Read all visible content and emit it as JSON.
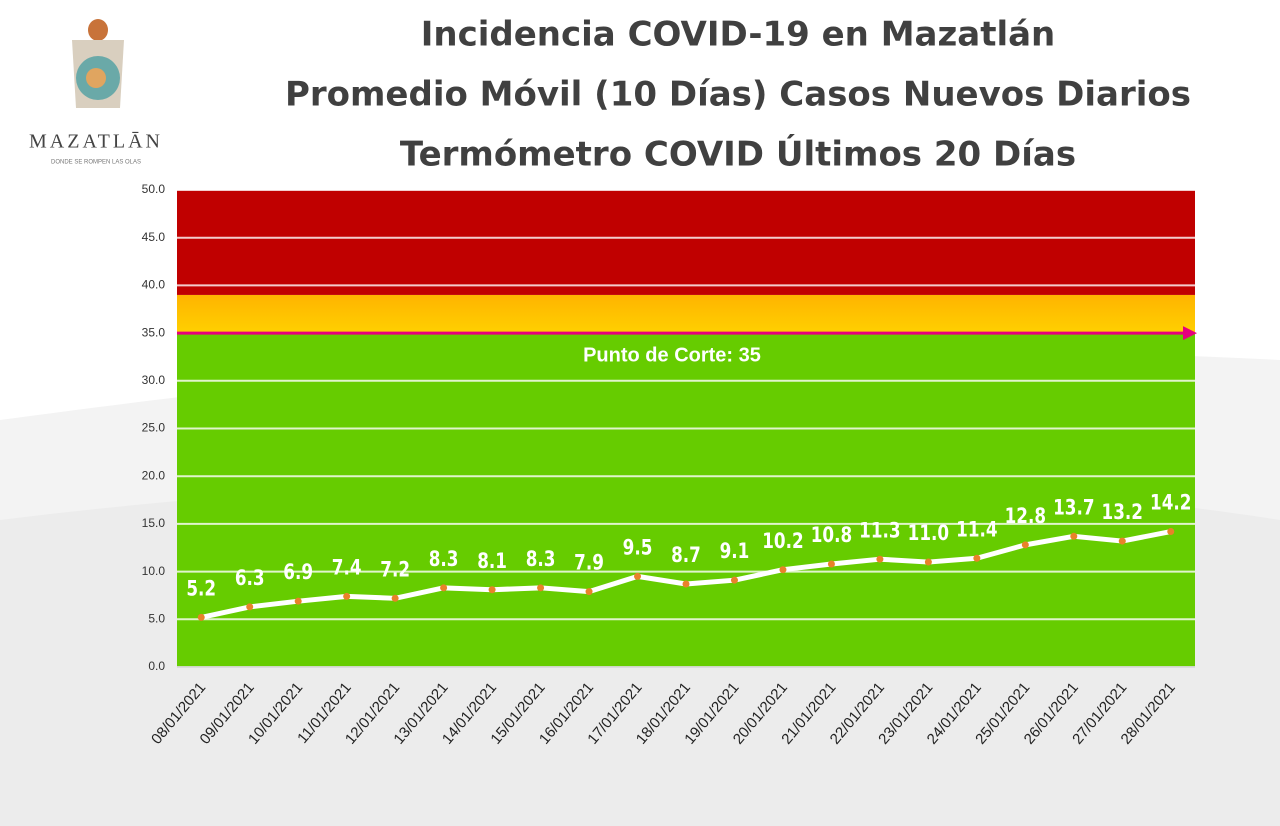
{
  "logo": {
    "name": "MAZATLĀN",
    "tagline": "DONDE SE ROMPEN LAS OLAS"
  },
  "chart_data": {
    "type": "line",
    "title": [
      "Incidencia COVID-19 en Mazatlán",
      "Promedio Móvil (10 Días) Casos Nuevos Diarios",
      "Termómetro COVID Últimos 20 Días"
    ],
    "categories": [
      "08/01/2021",
      "09/01/2021",
      "10/01/2021",
      "11/01/2021",
      "12/01/2021",
      "13/01/2021",
      "14/01/2021",
      "15/01/2021",
      "16/01/2021",
      "17/01/2021",
      "18/01/2021",
      "19/01/2021",
      "20/01/2021",
      "21/01/2021",
      "22/01/2021",
      "23/01/2021",
      "24/01/2021",
      "25/01/2021",
      "26/01/2021",
      "27/01/2021",
      "28/01/2021"
    ],
    "values": [
      5.2,
      6.3,
      6.9,
      7.4,
      7.2,
      8.3,
      8.1,
      8.3,
      7.9,
      9.5,
      8.7,
      9.1,
      10.2,
      10.8,
      11.3,
      11.0,
      11.4,
      12.8,
      13.7,
      13.2,
      14.2
    ],
    "value_labels": [
      "5.2",
      "6.3",
      "6.9",
      "7.4",
      "7.2",
      "8.3",
      "8.1",
      "8.3",
      "7.9",
      "9.5",
      "8.7",
      "9.1",
      "10.2",
      "10.8",
      "11.3",
      "11.0",
      "11.4",
      "12.8",
      "13.7",
      "13.2",
      "14.2"
    ],
    "color": "#ffffff",
    "marker_color": "#e8822a",
    "ylim": [
      0,
      50
    ],
    "yticks": [
      {
        "value": 0,
        "label": "0.0"
      },
      {
        "value": 5,
        "label": "5.0"
      },
      {
        "value": 10,
        "label": "10.0"
      },
      {
        "value": 15,
        "label": "15.0"
      },
      {
        "value": 20,
        "label": "20.0"
      },
      {
        "value": 25,
        "label": "25.0"
      },
      {
        "value": 30,
        "label": "30.0"
      },
      {
        "value": 35,
        "label": "35.0"
      },
      {
        "value": 40,
        "label": "40.0"
      },
      {
        "value": 45,
        "label": "45.0"
      },
      {
        "value": 50,
        "label": "50.0"
      }
    ],
    "grid": true,
    "zones": [
      {
        "from": 0,
        "to": 35,
        "color": "#66cc00"
      },
      {
        "from": 35,
        "to": 39,
        "color": "#f5b800"
      },
      {
        "from": 39,
        "to": 50,
        "color": "#c00000"
      }
    ],
    "threshold": {
      "value": 35,
      "label": "Punto de Corte: 35",
      "color": "#e6007e"
    }
  }
}
